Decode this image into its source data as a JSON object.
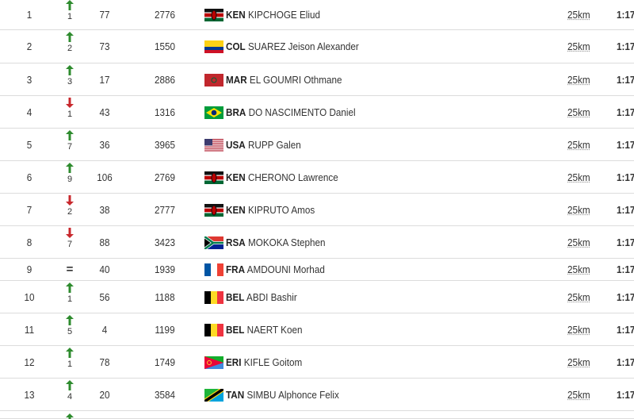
{
  "table": {
    "rows": [
      {
        "rank": 1,
        "trend": "up",
        "change": 1,
        "previous": 77,
        "bib": 2776,
        "country": "KEN",
        "name": "KIPCHOGE Eliud",
        "distance": "25km",
        "time": "1:17"
      },
      {
        "rank": 2,
        "trend": "up",
        "change": 2,
        "previous": 73,
        "bib": 1550,
        "country": "COL",
        "name": "SUAREZ Jeison Alexander",
        "distance": "25km",
        "time": "1:17"
      },
      {
        "rank": 3,
        "trend": "up",
        "change": 3,
        "previous": 17,
        "bib": 2886,
        "country": "MAR",
        "name": "EL GOUMRI Othmane",
        "distance": "25km",
        "time": "1:17"
      },
      {
        "rank": 4,
        "trend": "down",
        "change": 1,
        "previous": 43,
        "bib": 1316,
        "country": "BRA",
        "name": "DO NASCIMENTO Daniel",
        "distance": "25km",
        "time": "1:17"
      },
      {
        "rank": 5,
        "trend": "up",
        "change": 7,
        "previous": 36,
        "bib": 3965,
        "country": "USA",
        "name": "RUPP Galen",
        "distance": "25km",
        "time": "1:17"
      },
      {
        "rank": 6,
        "trend": "up",
        "change": 9,
        "previous": 106,
        "bib": 2769,
        "country": "KEN",
        "name": "CHERONO Lawrence",
        "distance": "25km",
        "time": "1:17"
      },
      {
        "rank": 7,
        "trend": "down",
        "change": 2,
        "previous": 38,
        "bib": 2777,
        "country": "KEN",
        "name": "KIPRUTO Amos",
        "distance": "25km",
        "time": "1:17"
      },
      {
        "rank": 8,
        "trend": "down",
        "change": 7,
        "previous": 88,
        "bib": 3423,
        "country": "RSA",
        "name": "MOKOKA Stephen",
        "distance": "25km",
        "time": "1:17"
      },
      {
        "rank": 9,
        "trend": "same",
        "change": "=",
        "previous": 40,
        "bib": 1939,
        "country": "FRA",
        "name": "AMDOUNI Morhad",
        "distance": "25km",
        "time": "1:17"
      },
      {
        "rank": 10,
        "trend": "up",
        "change": 1,
        "previous": 56,
        "bib": 1188,
        "country": "BEL",
        "name": "ABDI Bashir",
        "distance": "25km",
        "time": "1:17"
      },
      {
        "rank": 11,
        "trend": "up",
        "change": 5,
        "previous": 4,
        "bib": 1199,
        "country": "BEL",
        "name": "NAERT Koen",
        "distance": "25km",
        "time": "1:17"
      },
      {
        "rank": 12,
        "trend": "up",
        "change": 1,
        "previous": 78,
        "bib": 1749,
        "country": "ERI",
        "name": "KIFLE Goitom",
        "distance": "25km",
        "time": "1:17"
      },
      {
        "rank": 13,
        "trend": "up",
        "change": 4,
        "previous": 20,
        "bib": 3584,
        "country": "TAN",
        "name": "SIMBU Alphonce Felix",
        "distance": "25km",
        "time": "1:17"
      }
    ]
  }
}
